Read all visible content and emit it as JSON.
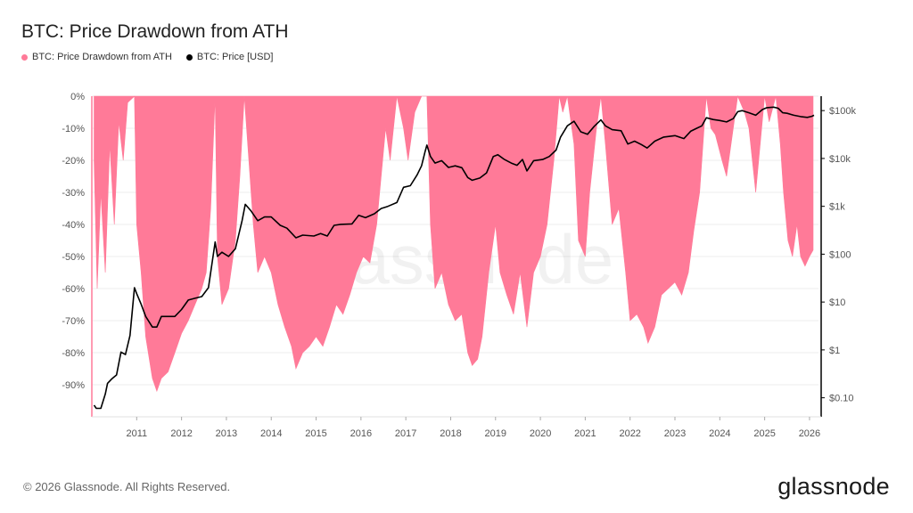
{
  "header": {
    "title": "BTC: Price Drawdown from ATH"
  },
  "legend": [
    {
      "label": "BTC: Price Drawdown from ATH",
      "color": "#ff7a98"
    },
    {
      "label": "BTC: Price [USD]",
      "color": "#000000"
    }
  ],
  "footer": {
    "copyright": "© 2026 Glassnode. All Rights Reserved.",
    "brand": "glassnode"
  },
  "chart_data": {
    "type": "area",
    "title": "BTC: Price Drawdown from ATH",
    "watermark": "glassnode",
    "x_ticks": [
      "2011",
      "2012",
      "2013",
      "2014",
      "2015",
      "2016",
      "2017",
      "2018",
      "2019",
      "2020",
      "2021",
      "2022",
      "2023",
      "2024",
      "2025",
      "2026"
    ],
    "y_left": {
      "ticks": [
        "0%",
        "-10%",
        "-20%",
        "-30%",
        "-40%",
        "-50%",
        "-60%",
        "-70%",
        "-80%",
        "-90%"
      ],
      "range": [
        -100,
        0
      ]
    },
    "y_right": {
      "scale": "log",
      "ticks": [
        "$0.10",
        "$1",
        "$10",
        "$100",
        "$1k",
        "$10k",
        "$100k"
      ],
      "range": [
        0.04,
        200000
      ]
    },
    "grid": true,
    "legend_position": "top-left",
    "series": [
      {
        "name": "BTC: Price Drawdown from ATH",
        "color": "#ff7a98",
        "unit": "%",
        "points": [
          [
            2010.55,
            -20
          ],
          [
            2010.62,
            -60
          ],
          [
            2010.7,
            -30
          ],
          [
            2010.8,
            -55
          ],
          [
            2010.9,
            -15
          ],
          [
            2011.0,
            -40
          ],
          [
            2011.1,
            -8
          ],
          [
            2011.2,
            -20
          ],
          [
            2011.3,
            -2
          ],
          [
            2011.45,
            0
          ],
          [
            2011.5,
            -40
          ],
          [
            2011.6,
            -55
          ],
          [
            2011.7,
            -75
          ],
          [
            2011.85,
            -88
          ],
          [
            2011.95,
            -92
          ],
          [
            2012.05,
            -88
          ],
          [
            2012.2,
            -86
          ],
          [
            2012.35,
            -80
          ],
          [
            2012.5,
            -74
          ],
          [
            2012.65,
            -70
          ],
          [
            2012.8,
            -65
          ],
          [
            2012.95,
            -60
          ],
          [
            2013.05,
            -55
          ],
          [
            2013.15,
            -35
          ],
          [
            2013.25,
            0
          ],
          [
            2013.3,
            -50
          ],
          [
            2013.4,
            -65
          ],
          [
            2013.55,
            -60
          ],
          [
            2013.7,
            -45
          ],
          [
            2013.8,
            -25
          ],
          [
            2013.9,
            0
          ],
          [
            2014.0,
            -20
          ],
          [
            2014.1,
            -40
          ],
          [
            2014.2,
            -55
          ],
          [
            2014.35,
            -50
          ],
          [
            2014.5,
            -55
          ],
          [
            2014.65,
            -65
          ],
          [
            2014.8,
            -72
          ],
          [
            2014.95,
            -78
          ],
          [
            2015.05,
            -85
          ],
          [
            2015.2,
            -80
          ],
          [
            2015.35,
            -78
          ],
          [
            2015.5,
            -75
          ],
          [
            2015.65,
            -78
          ],
          [
            2015.8,
            -72
          ],
          [
            2015.95,
            -65
          ],
          [
            2016.1,
            -68
          ],
          [
            2016.25,
            -62
          ],
          [
            2016.4,
            -55
          ],
          [
            2016.55,
            -50
          ],
          [
            2016.7,
            -52
          ],
          [
            2016.85,
            -40
          ],
          [
            2016.95,
            -25
          ],
          [
            2017.05,
            -10
          ],
          [
            2017.15,
            -20
          ],
          [
            2017.3,
            0
          ],
          [
            2017.45,
            -10
          ],
          [
            2017.55,
            -20
          ],
          [
            2017.7,
            -5
          ],
          [
            2017.85,
            0
          ],
          [
            2017.97,
            0
          ],
          [
            2018.05,
            -40
          ],
          [
            2018.15,
            -60
          ],
          [
            2018.3,
            -55
          ],
          [
            2018.45,
            -65
          ],
          [
            2018.6,
            -70
          ],
          [
            2018.75,
            -68
          ],
          [
            2018.88,
            -80
          ],
          [
            2018.98,
            -84
          ],
          [
            2019.1,
            -82
          ],
          [
            2019.2,
            -75
          ],
          [
            2019.35,
            -55
          ],
          [
            2019.5,
            -40
          ],
          [
            2019.6,
            -55
          ],
          [
            2019.75,
            -62
          ],
          [
            2019.9,
            -68
          ],
          [
            2020.05,
            -55
          ],
          [
            2020.2,
            -72
          ],
          [
            2020.35,
            -55
          ],
          [
            2020.5,
            -50
          ],
          [
            2020.65,
            -40
          ],
          [
            2020.8,
            -20
          ],
          [
            2020.92,
            0
          ],
          [
            2021.0,
            -5
          ],
          [
            2021.1,
            0
          ],
          [
            2021.25,
            -15
          ],
          [
            2021.35,
            -45
          ],
          [
            2021.5,
            -50
          ],
          [
            2021.6,
            -30
          ],
          [
            2021.75,
            -10
          ],
          [
            2021.85,
            0
          ],
          [
            2021.95,
            -15
          ],
          [
            2022.1,
            -40
          ],
          [
            2022.25,
            -35
          ],
          [
            2022.4,
            -55
          ],
          [
            2022.5,
            -70
          ],
          [
            2022.65,
            -68
          ],
          [
            2022.8,
            -72
          ],
          [
            2022.9,
            -77
          ],
          [
            2023.05,
            -72
          ],
          [
            2023.2,
            -62
          ],
          [
            2023.35,
            -60
          ],
          [
            2023.5,
            -58
          ],
          [
            2023.65,
            -62
          ],
          [
            2023.8,
            -55
          ],
          [
            2023.92,
            -42
          ],
          [
            2024.05,
            -30
          ],
          [
            2024.2,
            0
          ],
          [
            2024.3,
            -10
          ],
          [
            2024.4,
            -12
          ],
          [
            2024.55,
            -20
          ],
          [
            2024.65,
            -25
          ],
          [
            2024.78,
            -12
          ],
          [
            2024.9,
            0
          ],
          [
            2025.05,
            -5
          ],
          [
            2025.15,
            -10
          ],
          [
            2025.3,
            -30
          ],
          [
            2025.4,
            -15
          ],
          [
            2025.5,
            0
          ],
          [
            2025.6,
            -8
          ],
          [
            2025.75,
            0
          ],
          [
            2025.85,
            -15
          ],
          [
            2025.92,
            -30
          ],
          [
            2026.02,
            -45
          ],
          [
            2026.12,
            -50
          ],
          [
            2026.22,
            -40
          ],
          [
            2026.3,
            -50
          ],
          [
            2026.4,
            -53
          ],
          [
            2026.5,
            -50
          ],
          [
            2026.58,
            -48
          ]
        ]
      },
      {
        "name": "BTC: Price [USD]",
        "color": "#000000",
        "unit": "USD",
        "points": [
          [
            2010.55,
            0.07
          ],
          [
            2010.6,
            0.06
          ],
          [
            2010.7,
            0.06
          ],
          [
            2010.8,
            0.12
          ],
          [
            2010.85,
            0.2
          ],
          [
            2010.95,
            0.25
          ],
          [
            2011.05,
            0.3
          ],
          [
            2011.15,
            0.9
          ],
          [
            2011.25,
            0.8
          ],
          [
            2011.35,
            2
          ],
          [
            2011.45,
            20
          ],
          [
            2011.5,
            15
          ],
          [
            2011.6,
            9
          ],
          [
            2011.7,
            5
          ],
          [
            2011.85,
            3
          ],
          [
            2011.95,
            3
          ],
          [
            2012.05,
            5
          ],
          [
            2012.2,
            5
          ],
          [
            2012.35,
            5
          ],
          [
            2012.5,
            7
          ],
          [
            2012.65,
            11
          ],
          [
            2012.8,
            12
          ],
          [
            2012.95,
            13
          ],
          [
            2013.1,
            20
          ],
          [
            2013.25,
            180
          ],
          [
            2013.3,
            90
          ],
          [
            2013.4,
            110
          ],
          [
            2013.55,
            90
          ],
          [
            2013.7,
            130
          ],
          [
            2013.85,
            500
          ],
          [
            2013.92,
            1100
          ],
          [
            2014.05,
            800
          ],
          [
            2014.2,
            500
          ],
          [
            2014.35,
            600
          ],
          [
            2014.5,
            600
          ],
          [
            2014.7,
            400
          ],
          [
            2014.85,
            350
          ],
          [
            2015.05,
            220
          ],
          [
            2015.2,
            250
          ],
          [
            2015.45,
            240
          ],
          [
            2015.6,
            270
          ],
          [
            2015.75,
            240
          ],
          [
            2015.9,
            400
          ],
          [
            2016.05,
            420
          ],
          [
            2016.3,
            430
          ],
          [
            2016.45,
            650
          ],
          [
            2016.6,
            580
          ],
          [
            2016.8,
            700
          ],
          [
            2016.95,
            900
          ],
          [
            2017.1,
            1000
          ],
          [
            2017.3,
            1200
          ],
          [
            2017.45,
            2500
          ],
          [
            2017.6,
            2700
          ],
          [
            2017.75,
            4500
          ],
          [
            2017.85,
            7000
          ],
          [
            2017.93,
            14000
          ],
          [
            2017.97,
            19000
          ],
          [
            2018.05,
            11000
          ],
          [
            2018.15,
            8000
          ],
          [
            2018.3,
            9000
          ],
          [
            2018.45,
            6500
          ],
          [
            2018.6,
            7000
          ],
          [
            2018.75,
            6400
          ],
          [
            2018.88,
            4000
          ],
          [
            2018.98,
            3500
          ],
          [
            2019.15,
            3900
          ],
          [
            2019.3,
            5000
          ],
          [
            2019.45,
            11000
          ],
          [
            2019.55,
            12000
          ],
          [
            2019.7,
            9500
          ],
          [
            2019.85,
            8000
          ],
          [
            2019.98,
            7200
          ],
          [
            2020.1,
            9500
          ],
          [
            2020.2,
            5500
          ],
          [
            2020.35,
            9000
          ],
          [
            2020.55,
            9500
          ],
          [
            2020.7,
            11000
          ],
          [
            2020.85,
            15000
          ],
          [
            2020.95,
            28000
          ],
          [
            2021.1,
            48000
          ],
          [
            2021.25,
            60000
          ],
          [
            2021.4,
            36000
          ],
          [
            2021.55,
            32000
          ],
          [
            2021.7,
            47000
          ],
          [
            2021.85,
            64000
          ],
          [
            2021.95,
            48000
          ],
          [
            2022.1,
            40000
          ],
          [
            2022.3,
            38000
          ],
          [
            2022.45,
            20000
          ],
          [
            2022.6,
            23000
          ],
          [
            2022.75,
            19500
          ],
          [
            2022.88,
            16500
          ],
          [
            2023.05,
            23000
          ],
          [
            2023.25,
            28000
          ],
          [
            2023.5,
            30000
          ],
          [
            2023.7,
            26000
          ],
          [
            2023.85,
            37000
          ],
          [
            2023.97,
            42000
          ],
          [
            2024.1,
            48000
          ],
          [
            2024.2,
            71000
          ],
          [
            2024.35,
            65000
          ],
          [
            2024.5,
            62000
          ],
          [
            2024.65,
            58000
          ],
          [
            2024.8,
            68000
          ],
          [
            2024.9,
            95000
          ],
          [
            2025.0,
            100000
          ],
          [
            2025.15,
            90000
          ],
          [
            2025.3,
            80000
          ],
          [
            2025.45,
            105000
          ],
          [
            2025.55,
            115000
          ],
          [
            2025.7,
            118000
          ],
          [
            2025.8,
            112000
          ],
          [
            2025.9,
            90000
          ],
          [
            2026.0,
            88000
          ],
          [
            2026.15,
            80000
          ],
          [
            2026.3,
            75000
          ],
          [
            2026.45,
            72000
          ],
          [
            2026.55,
            76000
          ],
          [
            2026.6,
            80000
          ]
        ]
      }
    ]
  }
}
